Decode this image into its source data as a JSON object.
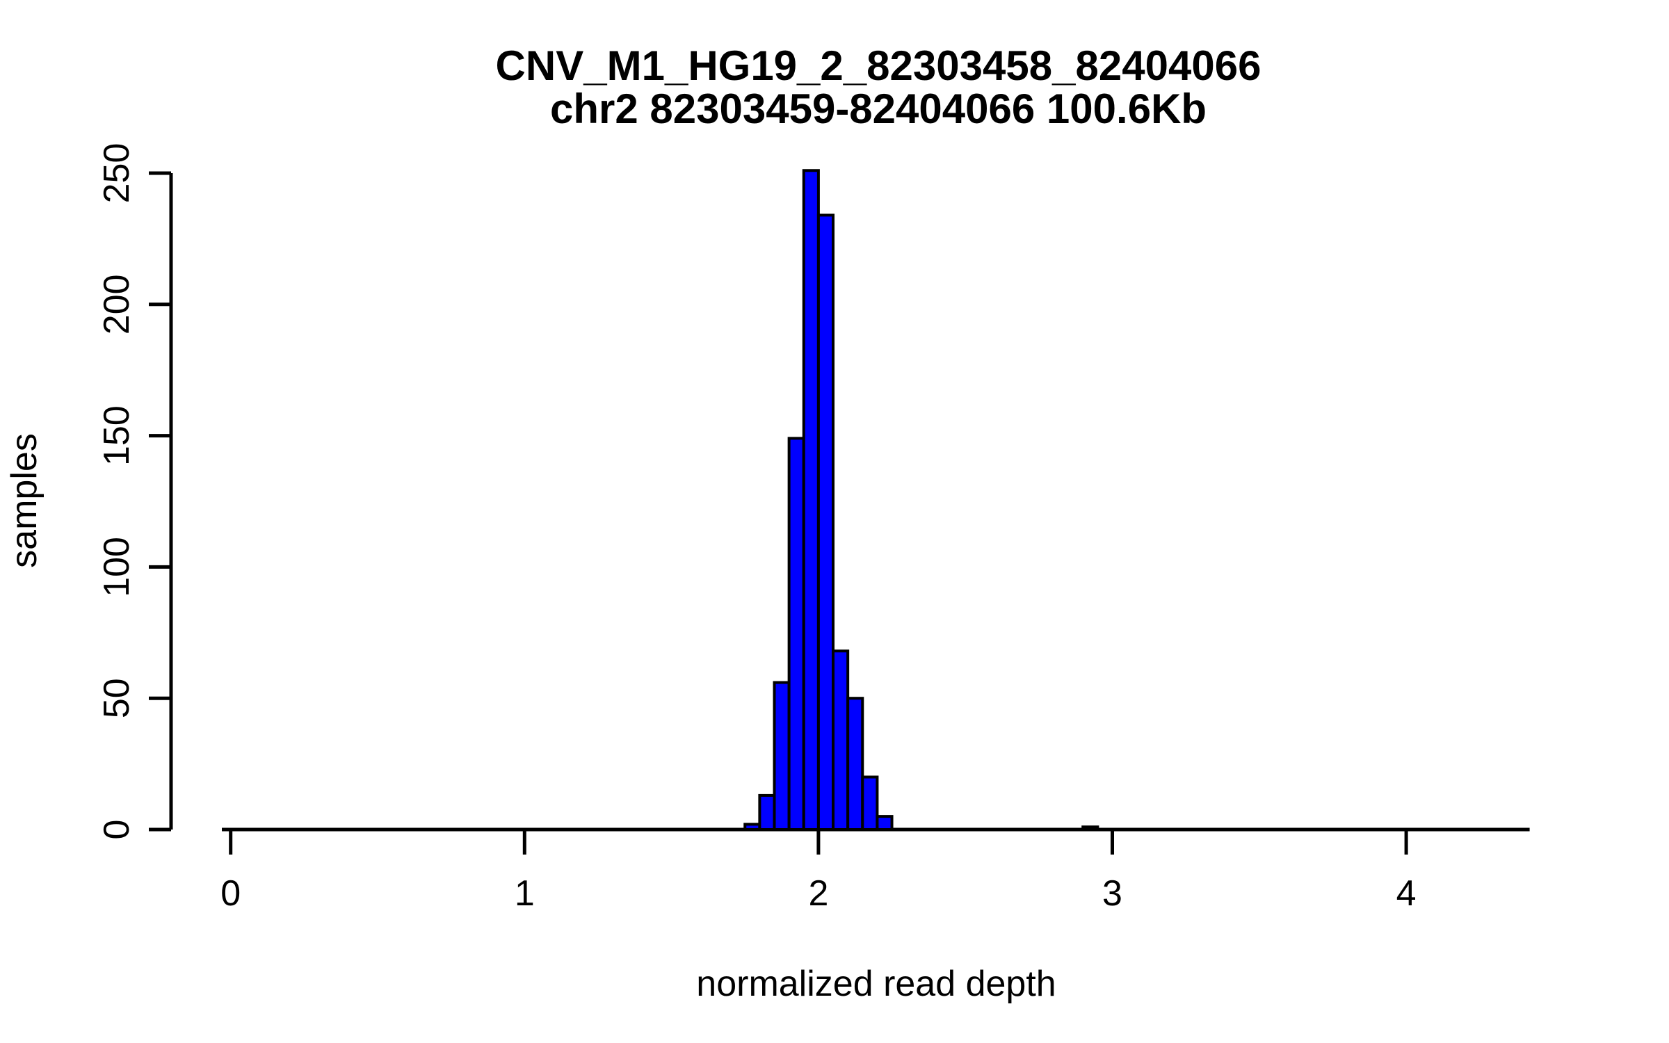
{
  "chart_data": {
    "type": "bar",
    "subtype": "histogram",
    "title": "CNV_M1_HG19_2_82303458_82404066",
    "subtitle": "chr2 82303459-82404066 100.6Kb",
    "xlabel": "normalized read depth",
    "ylabel": "samples",
    "x_ticks": [
      0,
      1,
      2,
      3,
      4
    ],
    "y_ticks": [
      0,
      50,
      100,
      150,
      200,
      250
    ],
    "xlim": [
      -0.03,
      4.42
    ],
    "ylim": [
      0,
      251
    ],
    "bin_width": 0.05,
    "bars": [
      {
        "x0": 1.75,
        "x1": 1.8,
        "count": 2
      },
      {
        "x0": 1.8,
        "x1": 1.85,
        "count": 13
      },
      {
        "x0": 1.85,
        "x1": 1.9,
        "count": 56
      },
      {
        "x0": 1.9,
        "x1": 1.95,
        "count": 149
      },
      {
        "x0": 1.95,
        "x1": 2.0,
        "count": 251
      },
      {
        "x0": 2.0,
        "x1": 2.05,
        "count": 234
      },
      {
        "x0": 2.05,
        "x1": 2.1,
        "count": 68
      },
      {
        "x0": 2.1,
        "x1": 2.15,
        "count": 50
      },
      {
        "x0": 2.15,
        "x1": 2.2,
        "count": 20
      },
      {
        "x0": 2.2,
        "x1": 2.25,
        "count": 5
      },
      {
        "x0": 2.9,
        "x1": 2.95,
        "count": 1
      }
    ],
    "bar_fill": "#0000FF",
    "bar_stroke": "#000000",
    "axis_color": "#000000",
    "background": "#FFFFFF",
    "grid": false,
    "legend": null
  }
}
